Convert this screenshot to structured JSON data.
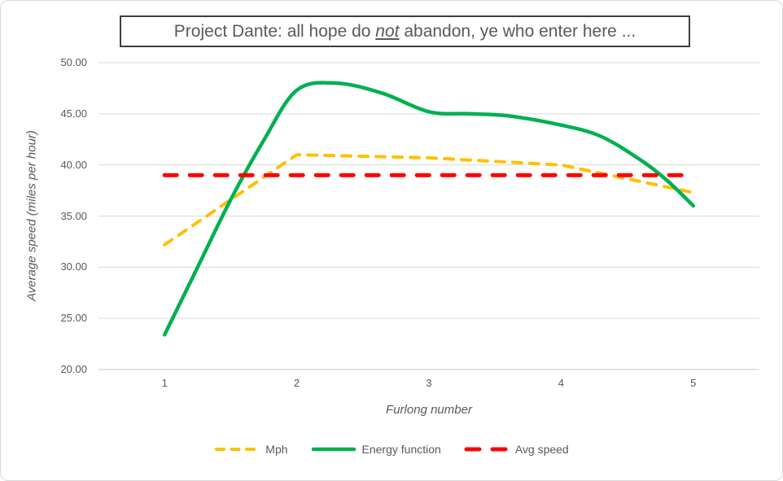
{
  "chart_data": {
    "type": "line",
    "title": {
      "prefix": "Project Dante: all hope do ",
      "emphasis": "not",
      "suffix": " abandon, ye who enter here ..."
    },
    "xlabel": "Furlong number",
    "ylabel": "Average speed (miles per hour)",
    "categories": [
      1,
      2,
      3,
      4,
      5
    ],
    "x_tick_labels": [
      "1",
      "2",
      "3",
      "4",
      "5"
    ],
    "y_tick_labels": [
      "50.00",
      "45.00",
      "40.00",
      "35.00",
      "30.00",
      "25.00",
      "20.00"
    ],
    "ylim": [
      20,
      50
    ],
    "grid": true,
    "legend_position": "bottom",
    "series": [
      {
        "name": "Mph",
        "color": "#FFC000",
        "style": "dashed",
        "smoothed": false,
        "values": [
          32.2,
          41.0,
          40.7,
          40.0,
          37.3
        ]
      },
      {
        "name": "Energy function",
        "color": "#00B050",
        "style": "solid",
        "smoothed": true,
        "values": [
          23.4,
          47.3,
          45.1,
          43.9,
          36.0
        ],
        "spline_samples": [
          [
            1,
            23.4
          ],
          [
            1.25,
            30.0
          ],
          [
            1.5,
            36.6
          ],
          [
            1.75,
            42.4
          ],
          [
            2,
            47.3
          ],
          [
            2.3,
            48.0
          ],
          [
            2.65,
            47.0
          ],
          [
            3,
            45.2
          ],
          [
            3.3,
            45.0
          ],
          [
            3.6,
            44.8
          ],
          [
            4,
            43.9
          ],
          [
            4.3,
            42.8
          ],
          [
            4.6,
            40.5
          ],
          [
            4.8,
            38.5
          ],
          [
            5,
            36.0
          ]
        ]
      },
      {
        "name": "Avg speed",
        "color": "#FF0000",
        "style": "long-dashed",
        "smoothed": false,
        "values": [
          39.0,
          39.0,
          39.0,
          39.0,
          39.0
        ]
      }
    ],
    "colors": {
      "text": "#595959",
      "gridline": "#D9D9D9",
      "axis_line": "#C9C9C9",
      "title_border": "#3F3F3F",
      "frame_border": "#D9D9D9"
    }
  }
}
